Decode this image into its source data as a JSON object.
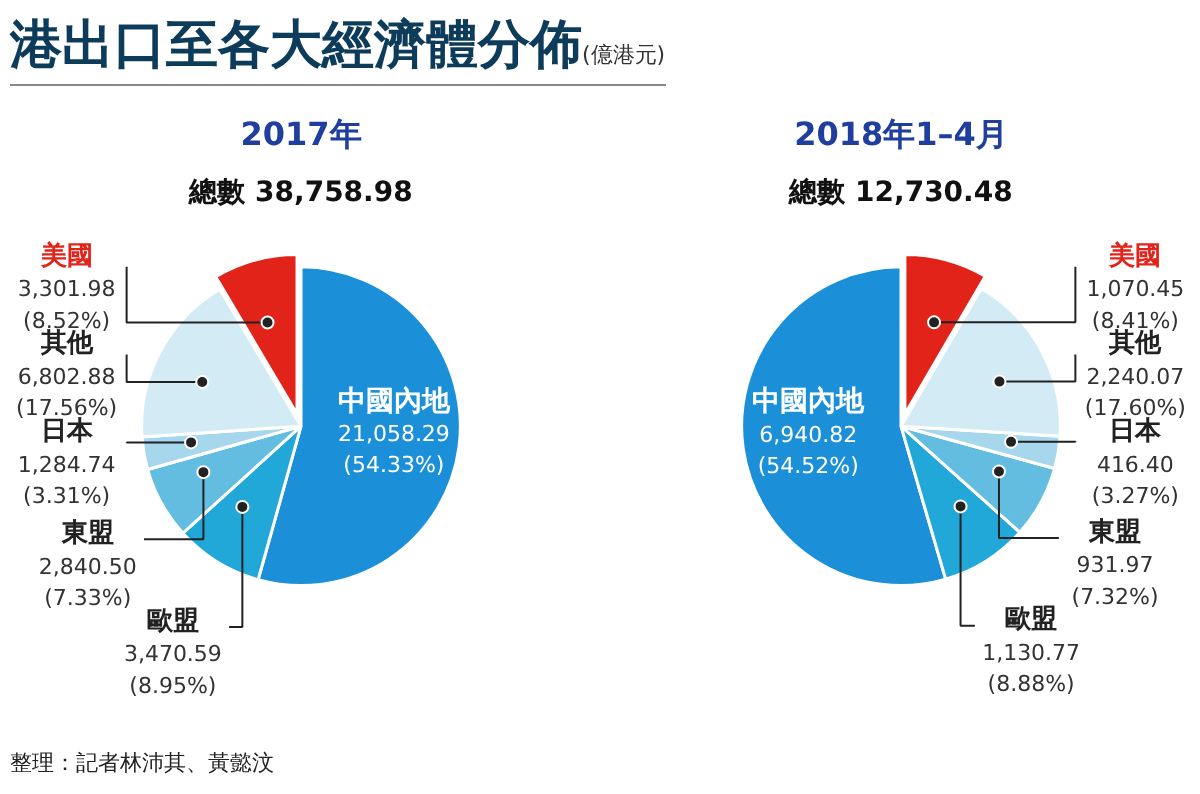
{
  "chart_data": [
    {
      "type": "pie",
      "title": "2017年",
      "subtitle": "總數 38,758.98",
      "categories": [
        "中國內地",
        "歐盟",
        "東盟",
        "日本",
        "其他",
        "美國"
      ],
      "values": [
        21058.29,
        3470.59,
        2840.5,
        1284.74,
        6802.88,
        3301.98
      ],
      "colors": [
        "#1b90d8",
        "#22a7d9",
        "#63bde0",
        "#a6d7ec",
        "#d3ebf5",
        "#e2231a"
      ],
      "value_labels": [
        "21,058.29\n(54.33%)",
        "3,470.59\n(8.95%)",
        "2,840.50\n(7.33%)",
        "1,284.74\n(3.31%)",
        "6,802.88\n(17.56%)",
        "3,301.98\n(8.52%)"
      ],
      "annotations": [
        "港出口至各大經濟體分佈",
        "(億港元)"
      ]
    },
    {
      "type": "pie",
      "title": "2018年1–4月",
      "subtitle": "總數 12,730.48",
      "categories": [
        "中國內地",
        "歐盟",
        "東盟",
        "日本",
        "其他",
        "美國"
      ],
      "values": [
        6940.82,
        1130.77,
        931.97,
        416.4,
        2240.07,
        1070.45
      ],
      "colors": [
        "#1b90d8",
        "#22a7d9",
        "#63bde0",
        "#a6d7ec",
        "#d3ebf5",
        "#e2231a"
      ],
      "value_labels": [
        "6,940.82\n(54.52%)",
        "1,130.77\n(8.88%)",
        "931.97\n(7.32%)",
        "416.40\n(3.27%)",
        "2,240.07\n(17.60%)",
        "1,070.45\n(8.41%)"
      ],
      "annotations": [
        "整理：記者林沛其、黃懿汶"
      ]
    }
  ]
}
